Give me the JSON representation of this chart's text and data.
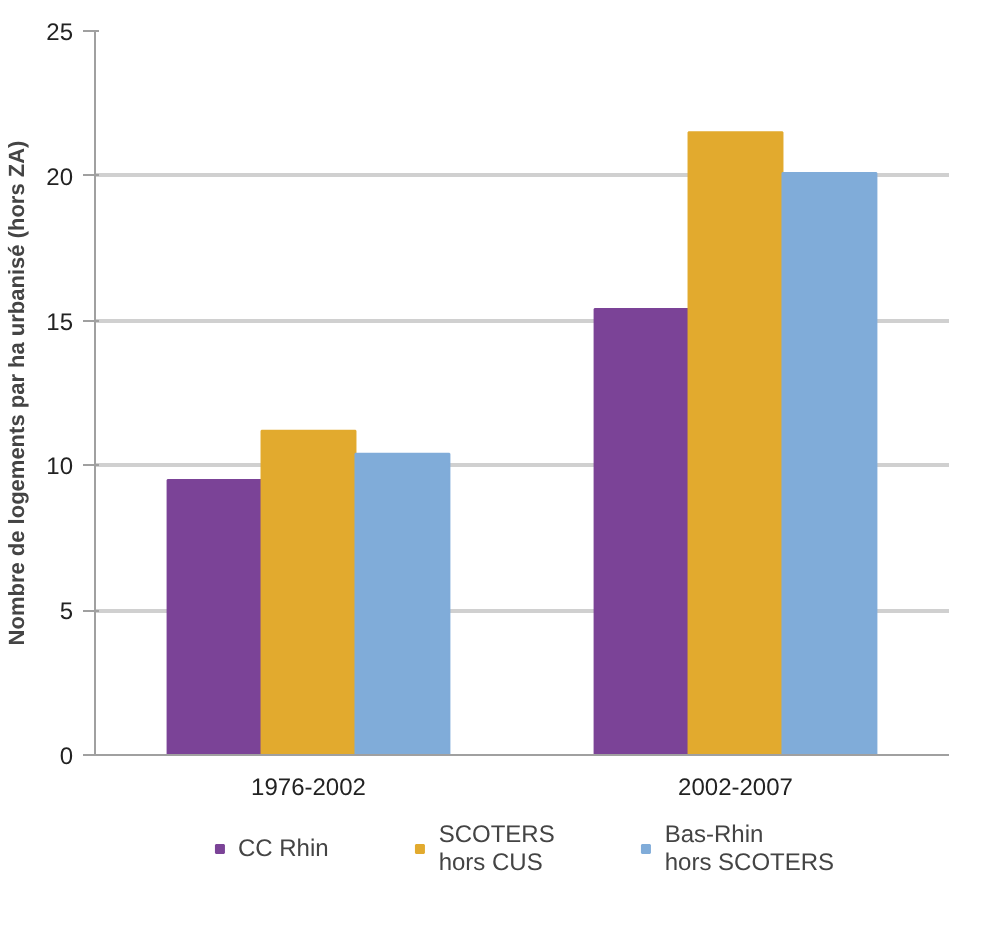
{
  "chart_data": {
    "type": "bar",
    "ylabel": "Nombre de logements par ha urbanisé (hors ZA)",
    "categories": [
      "1976-2002",
      "2002-2007"
    ],
    "series": [
      {
        "name": "CC Rhin",
        "color": "#7b4397",
        "values": [
          9.5,
          15.4
        ]
      },
      {
        "name": "SCOTERS hors CUS",
        "color": "#e2aa2e",
        "values": [
          11.2,
          21.5
        ]
      },
      {
        "name": "Bas-Rhin hors SCOTERS",
        "color": "#80acd9",
        "values": [
          10.4,
          20.1
        ]
      }
    ],
    "ylim": [
      0,
      25
    ],
    "yticks": [
      0,
      5,
      10,
      15,
      20,
      25
    ],
    "grid": "y",
    "legend": "bottom"
  }
}
